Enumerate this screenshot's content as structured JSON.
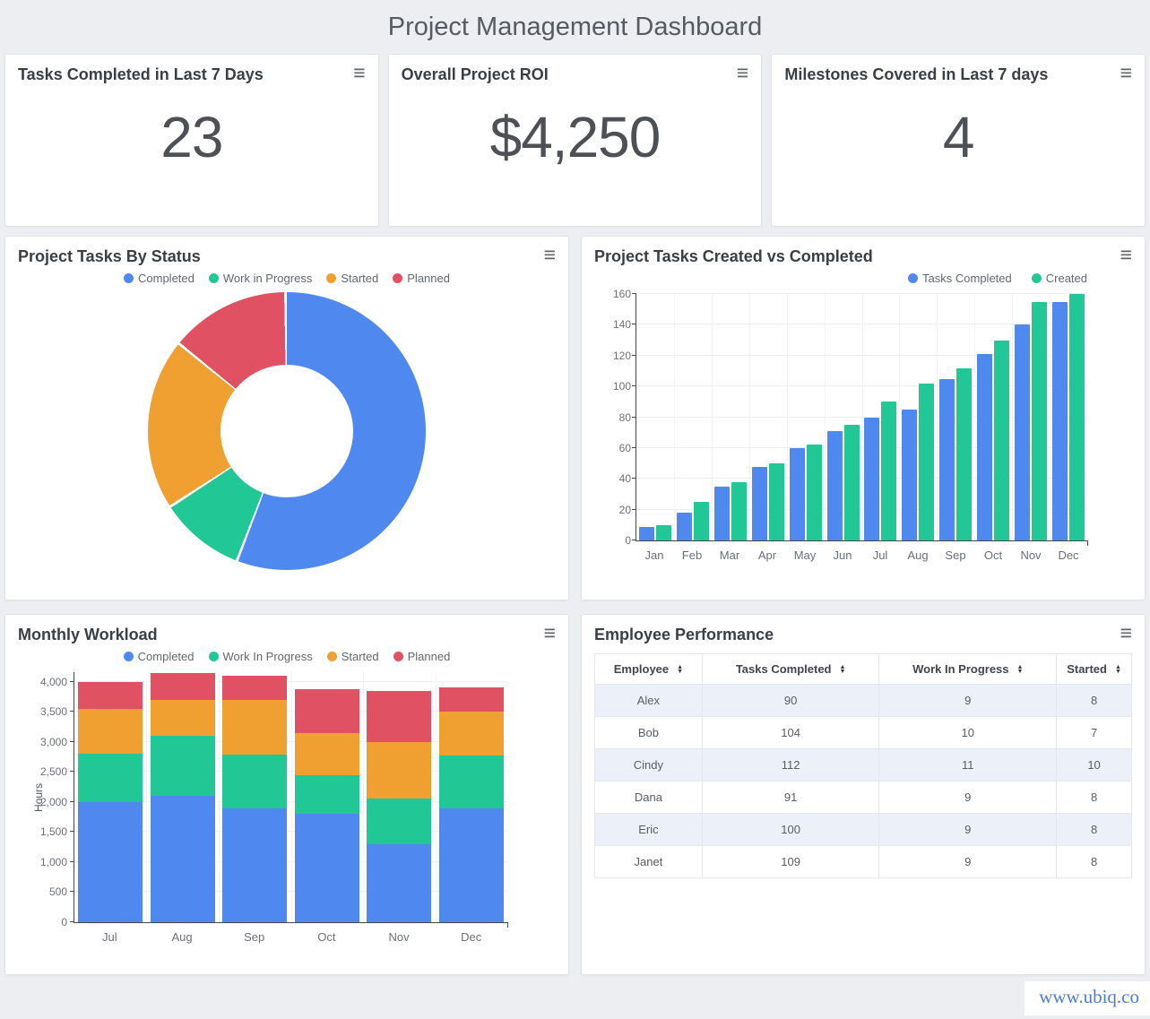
{
  "page": {
    "title": "Project Management Dashboard",
    "watermark": "www.ubiq.co"
  },
  "icons": {
    "menu": "≡",
    "sort_up": "▲",
    "sort_down": "▼"
  },
  "colors": {
    "blue": "#4F89F0",
    "green": "#21C895",
    "orange": "#F0A030",
    "red": "#E05263"
  },
  "kpis": [
    {
      "title": "Tasks Completed in Last 7 Days",
      "value": "23"
    },
    {
      "title": "Overall Project ROI",
      "value": "$4,250"
    },
    {
      "title": "Milestones Covered in Last 7 days",
      "value": "4"
    }
  ],
  "chart_data": [
    {
      "type": "pie",
      "donut": true,
      "title": "Project Tasks By Status",
      "labels": [
        "Completed",
        "Work in Progress",
        "Started",
        "Planned"
      ],
      "values": [
        56,
        10,
        20,
        14
      ],
      "colors": [
        "#4F89F0",
        "#21C895",
        "#F0A030",
        "#E05263"
      ],
      "legend_position": "top-center",
      "start_angle_deg": 0
    },
    {
      "type": "bar",
      "stacked": false,
      "title": "Project Tasks Created vs Completed",
      "categories": [
        "Jan",
        "Feb",
        "Mar",
        "Apr",
        "May",
        "Jun",
        "Jul",
        "Aug",
        "Sep",
        "Oct",
        "Nov",
        "Dec"
      ],
      "series": [
        {
          "name": "Tasks Completed",
          "color": "#4F89F0",
          "values": [
            9,
            18,
            35,
            48,
            60,
            71,
            80,
            85,
            105,
            121,
            140,
            155
          ]
        },
        {
          "name": "Created",
          "color": "#21C895",
          "values": [
            10,
            25,
            38,
            50,
            62,
            75,
            90,
            102,
            112,
            130,
            155,
            160
          ]
        }
      ],
      "xlabel": "",
      "ylabel": "",
      "ylim": [
        0,
        160
      ],
      "ytick_step": 20,
      "ytick_max": 160,
      "grid": true,
      "legend_position": "top-right"
    },
    {
      "type": "bar",
      "stacked": true,
      "title": "Monthly Workload",
      "categories": [
        "Jul",
        "Aug",
        "Sep",
        "Oct",
        "Nov",
        "Dec"
      ],
      "series": [
        {
          "name": "Completed",
          "color": "#4F89F0",
          "values": [
            2000,
            2100,
            1900,
            1800,
            1300,
            1900
          ]
        },
        {
          "name": "Work In Progress",
          "color": "#21C895",
          "values": [
            800,
            1000,
            890,
            650,
            760,
            880
          ]
        },
        {
          "name": "Started",
          "color": "#F0A030",
          "values": [
            750,
            600,
            910,
            700,
            940,
            720
          ]
        },
        {
          "name": "Planned",
          "color": "#E05263",
          "values": [
            450,
            440,
            400,
            730,
            840,
            400
          ]
        }
      ],
      "xlabel": "",
      "ylabel": "Hours",
      "ylim": [
        0,
        4160
      ],
      "ytick_step": 500,
      "ytick_max": 4000,
      "grid": true,
      "legend_position": "top-center"
    }
  ],
  "table": {
    "title": "Employee Performance",
    "columns": [
      "Employee",
      "Tasks Completed",
      "Work In Progress",
      "Started"
    ],
    "col_widths": [
      "20%",
      "33%",
      "33%",
      "14%"
    ],
    "rows": [
      [
        "Alex",
        "90",
        "9",
        "8"
      ],
      [
        "Bob",
        "104",
        "10",
        "7"
      ],
      [
        "Cindy",
        "112",
        "11",
        "10"
      ],
      [
        "Dana",
        "91",
        "9",
        "8"
      ],
      [
        "Eric",
        "100",
        "9",
        "8"
      ],
      [
        "Janet",
        "109",
        "9",
        "8"
      ]
    ]
  }
}
